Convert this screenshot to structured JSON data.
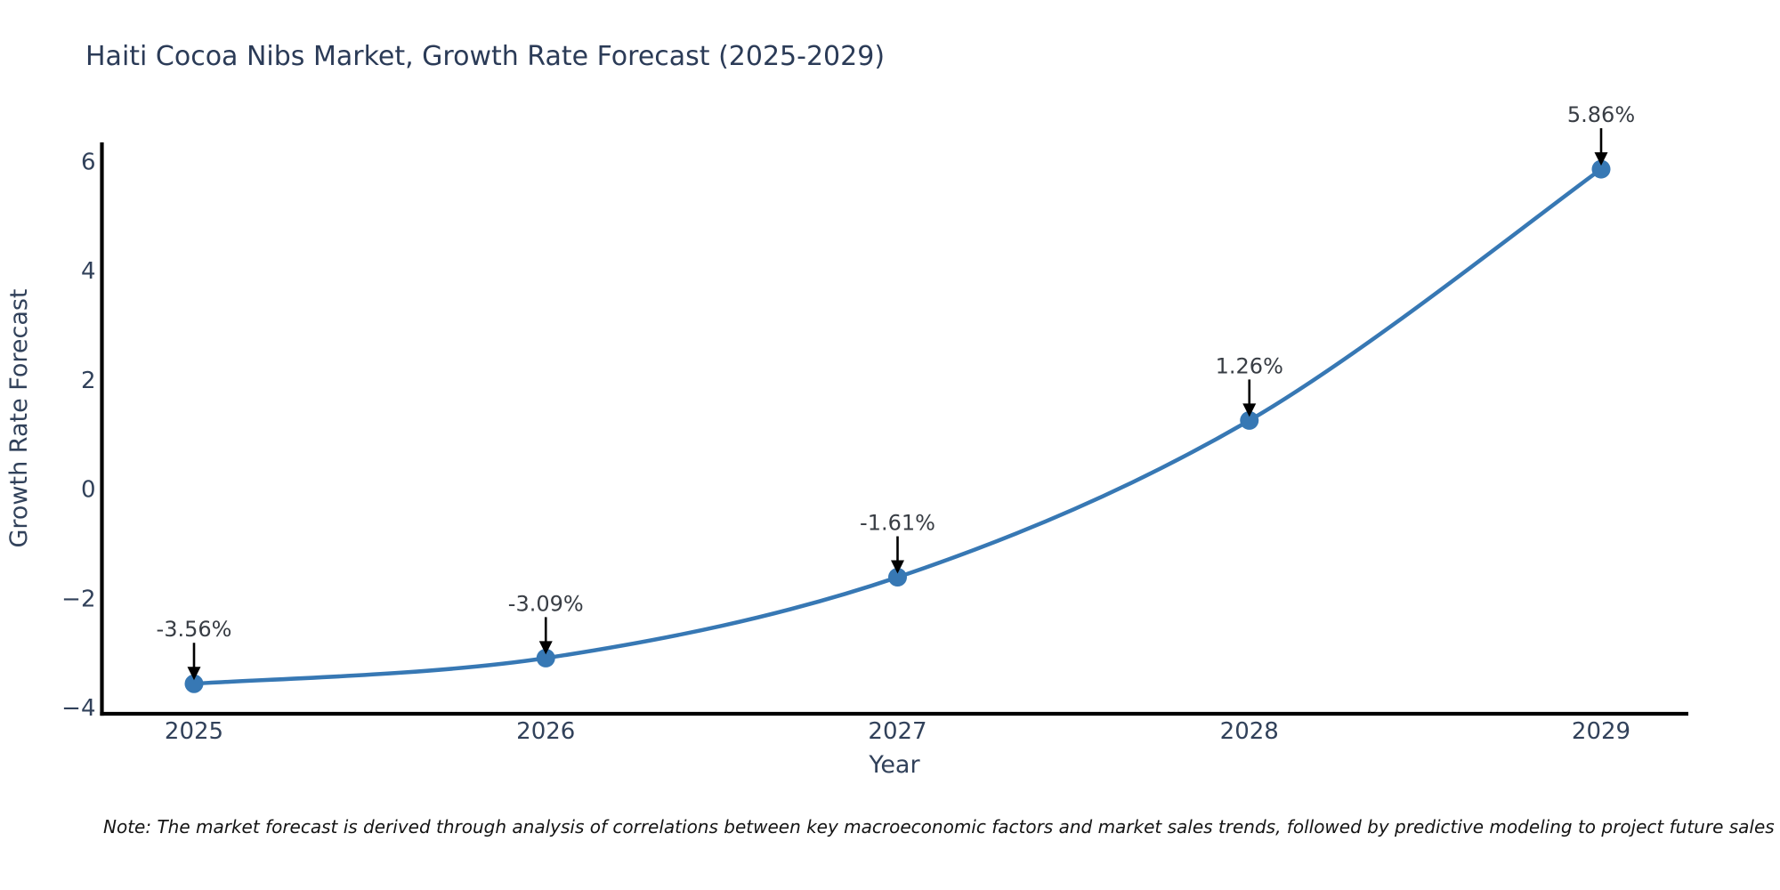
{
  "chart_data": {
    "type": "line",
    "title": "Haiti Cocoa Nibs Market, Growth Rate Forecast (2025-2029)",
    "xlabel": "Year",
    "ylabel": "Growth Rate Forecast",
    "categories": [
      "2025",
      "2026",
      "2027",
      "2028",
      "2029"
    ],
    "series": [
      {
        "name": "Growth Rate Forecast",
        "values": [
          -3.56,
          -3.09,
          -1.61,
          1.26,
          5.86
        ]
      }
    ],
    "point_labels": [
      "-3.56%",
      "-3.09%",
      "-1.61%",
      "1.26%",
      "5.86%"
    ],
    "yticks": [
      -4,
      -2,
      0,
      2,
      4,
      6
    ],
    "ylim": [
      -4.11,
      6.35
    ],
    "grid": false,
    "legend_position": "none",
    "colors": {
      "line": "#3778b4",
      "marker": "#3778b4",
      "annotation": "#000000",
      "axis": "#000000",
      "title_text": "#2b3b57",
      "tick_text": "#31415a",
      "note_text": "#141414"
    },
    "note": "Note: The market forecast is derived through analysis of correlations between key macroeconomic factors and market sales trends, followed by predictive modeling to project future sales"
  }
}
